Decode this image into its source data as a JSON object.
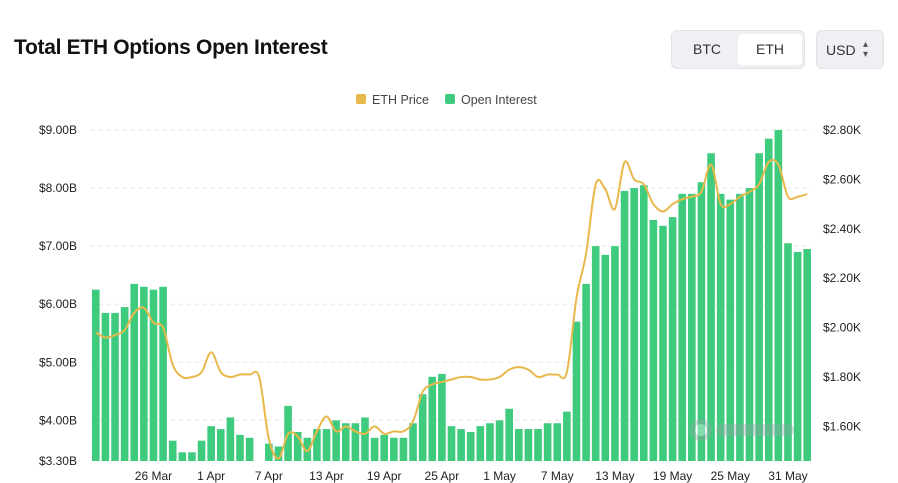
{
  "title": "Total ETH Options Open Interest",
  "toggle": {
    "btc": "BTC",
    "eth": "ETH",
    "selected": "ETH"
  },
  "currency": {
    "value": "USD",
    "icon": "chevron-up-down-icon"
  },
  "watermark_icon": "coinglass-logo",
  "colors": {
    "price": "#e8b84a",
    "oi": "#3ecb7e",
    "grid": "#e6e6e6"
  },
  "chart_data": {
    "type": "bar",
    "title": "Total ETH Options Open Interest",
    "legend": [
      {
        "name": "ETH Price",
        "color": "#e8b84a"
      },
      {
        "name": "Open Interest",
        "color": "#3ecb7e"
      }
    ],
    "legend_position": "top-center",
    "grid": true,
    "x_ticks": [
      "26 Mar",
      "1 Apr",
      "7 Apr",
      "13 Apr",
      "19 Apr",
      "25 Apr",
      "1 May",
      "7 May",
      "13 May",
      "19 May",
      "25 May",
      "31 May"
    ],
    "y_left_ticks": [
      "$9.00B",
      "$8.00B",
      "$7.00B",
      "$6.00B",
      "$5.00B",
      "$4.00B",
      "$3.30B"
    ],
    "y_right_ticks": [
      "$2.80K",
      "$2.60K",
      "$2.40K",
      "$2.20K",
      "$2.00K",
      "$1.80K",
      "$1.60K"
    ],
    "y_left_range": [
      3.3,
      9.0
    ],
    "y_right_range": [
      1.46,
      2.8
    ],
    "x": [
      "Mar 20",
      "Mar 21",
      "Mar 22",
      "Mar 23",
      "Mar 24",
      "Mar 25",
      "Mar 26",
      "Mar 27",
      "Mar 28",
      "Mar 29",
      "Mar 30",
      "Mar 31",
      "Apr 1",
      "Apr 2",
      "Apr 3",
      "Apr 4",
      "Apr 5",
      "Apr 6",
      "Apr 7",
      "Apr 8",
      "Apr 9",
      "Apr 10",
      "Apr 11",
      "Apr 12",
      "Apr 13",
      "Apr 14",
      "Apr 15",
      "Apr 16",
      "Apr 17",
      "Apr 18",
      "Apr 19",
      "Apr 20",
      "Apr 21",
      "Apr 22",
      "Apr 23",
      "Apr 24",
      "Apr 25",
      "Apr 26",
      "Apr 27",
      "Apr 28",
      "Apr 29",
      "Apr 30",
      "May 1",
      "May 2",
      "May 3",
      "May 4",
      "May 5",
      "May 6",
      "May 7",
      "May 8",
      "May 9",
      "May 10",
      "May 11",
      "May 12",
      "May 13",
      "May 14",
      "May 15",
      "May 16",
      "May 17",
      "May 18",
      "May 19",
      "May 20",
      "May 21",
      "May 22",
      "May 23",
      "May 24",
      "May 25",
      "May 26",
      "May 27",
      "May 28",
      "May 29",
      "May 30",
      "May 31",
      "Jun 1",
      "Jun 2"
    ],
    "series": [
      {
        "name": "Open Interest",
        "kind": "bar",
        "axis": "left",
        "values": [
          6.25,
          5.85,
          5.85,
          5.95,
          6.35,
          6.3,
          6.25,
          6.3,
          3.65,
          3.45,
          3.45,
          3.65,
          3.9,
          3.85,
          4.05,
          3.75,
          3.7,
          3.3,
          3.6,
          3.55,
          4.25,
          3.8,
          3.7,
          3.85,
          3.85,
          4.0,
          3.95,
          3.95,
          4.05,
          3.7,
          3.75,
          3.7,
          3.7,
          3.95,
          4.45,
          4.75,
          4.8,
          3.9,
          3.85,
          3.8,
          3.9,
          3.95,
          4.0,
          4.2,
          3.85,
          3.85,
          3.85,
          3.95,
          3.95,
          4.15,
          5.7,
          6.35,
          7.0,
          6.85,
          7.0,
          7.95,
          8.0,
          8.05,
          7.45,
          7.35,
          7.5,
          7.9,
          7.9,
          8.1,
          8.6,
          7.9,
          7.8,
          7.9,
          8.0,
          8.6,
          8.85,
          9.0,
          7.05,
          6.9,
          6.95
        ]
      },
      {
        "name": "ETH Price",
        "kind": "line",
        "axis": "right",
        "values": [
          1.98,
          1.96,
          1.97,
          1.99,
          2.06,
          2.08,
          2.02,
          2.0,
          1.85,
          1.8,
          1.8,
          1.82,
          1.9,
          1.82,
          1.8,
          1.81,
          1.81,
          1.8,
          1.55,
          1.47,
          1.57,
          1.56,
          1.5,
          1.58,
          1.64,
          1.58,
          1.6,
          1.58,
          1.57,
          1.6,
          1.57,
          1.58,
          1.58,
          1.62,
          1.74,
          1.77,
          1.78,
          1.79,
          1.8,
          1.8,
          1.79,
          1.79,
          1.8,
          1.83,
          1.84,
          1.83,
          1.8,
          1.81,
          1.81,
          1.82,
          2.12,
          2.3,
          2.58,
          2.56,
          2.48,
          2.67,
          2.6,
          2.58,
          2.5,
          2.47,
          2.5,
          2.52,
          2.53,
          2.55,
          2.66,
          2.5,
          2.5,
          2.53,
          2.55,
          2.58,
          2.67,
          2.66,
          2.53,
          2.53,
          2.54
        ]
      }
    ]
  }
}
